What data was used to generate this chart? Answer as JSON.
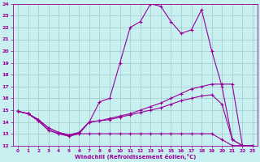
{
  "xlabel": "Windchill (Refroidissement éolien,°C)",
  "x": [
    0,
    1,
    2,
    3,
    4,
    5,
    6,
    7,
    8,
    9,
    10,
    11,
    12,
    13,
    14,
    15,
    16,
    17,
    18,
    19,
    20,
    21,
    22,
    23
  ],
  "line_peak": [
    14.9,
    14.7,
    14.1,
    13.3,
    13.0,
    12.8,
    13.0,
    14.0,
    15.7,
    16.0,
    19.0,
    22.0,
    22.5,
    24.0,
    23.8,
    22.5,
    21.5,
    21.8,
    23.5,
    20.0,
    17.0,
    12.5,
    12.0,
    12.0
  ],
  "line_upper": [
    14.9,
    14.7,
    14.2,
    13.5,
    13.1,
    12.9,
    13.1,
    14.0,
    14.1,
    14.3,
    14.5,
    14.7,
    15.0,
    15.3,
    15.6,
    16.0,
    16.4,
    16.8,
    17.0,
    17.2,
    17.2,
    17.2,
    12.0,
    12.0
  ],
  "line_mid": [
    14.9,
    14.7,
    14.2,
    13.5,
    13.1,
    12.9,
    13.1,
    14.0,
    14.1,
    14.2,
    14.4,
    14.6,
    14.8,
    15.0,
    15.2,
    15.5,
    15.8,
    16.0,
    16.2,
    16.3,
    15.5,
    12.5,
    12.0,
    12.0
  ],
  "line_lower": [
    14.9,
    14.7,
    14.1,
    13.3,
    13.0,
    12.8,
    13.0,
    13.0,
    13.0,
    13.0,
    13.0,
    13.0,
    13.0,
    13.0,
    13.0,
    13.0,
    13.0,
    13.0,
    13.0,
    13.0,
    12.5,
    12.0,
    12.0,
    12.0
  ],
  "line_color": "#990099",
  "bg_color": "#c8f0f0",
  "grid_color": "#a0c8c8",
  "ylim": [
    12,
    24
  ],
  "yticks": [
    12,
    13,
    14,
    15,
    16,
    17,
    18,
    19,
    20,
    21,
    22,
    23,
    24
  ],
  "xlim": [
    -0.5,
    23.5
  ],
  "xticks": [
    0,
    1,
    2,
    3,
    4,
    5,
    6,
    7,
    8,
    9,
    10,
    11,
    12,
    13,
    14,
    15,
    16,
    17,
    18,
    19,
    20,
    21,
    22,
    23
  ]
}
